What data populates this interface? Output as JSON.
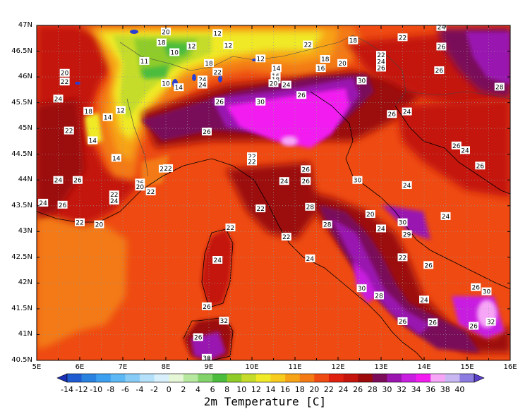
{
  "title": "2m Temperature [C]",
  "lat_labels": [
    "47N",
    "46.5N",
    "46N",
    "45.5N",
    "45N",
    "44.5N",
    "44N",
    "43.5N",
    "43N",
    "42.5N",
    "42N",
    "41.5N",
    "41N",
    "40.5N"
  ],
  "lon_labels": [
    "5E",
    "6E",
    "7E",
    "8E",
    "9E",
    "10E",
    "11E",
    "12E",
    "13E",
    "14E",
    "15E",
    "16E"
  ],
  "colorbar": {
    "labels": [
      "-14",
      "-12",
      "-10",
      "-8",
      "-6",
      "-4",
      "-2",
      "0",
      "2",
      "4",
      "6",
      "8",
      "10",
      "12",
      "14",
      "16",
      "18",
      "20",
      "22",
      "24",
      "26",
      "28",
      "30",
      "32",
      "34",
      "36",
      "38",
      "40"
    ],
    "colors": [
      "#1b2fb5",
      "#1f5ad0",
      "#2a82e0",
      "#3c9ff0",
      "#5cb8f5",
      "#86ccf7",
      "#b4e0fa",
      "#d8f0fb",
      "#e6f7d8",
      "#b6e8a0",
      "#82d46a",
      "#4cbc3c",
      "#8fcc2a",
      "#c5dc2a",
      "#f0ea28",
      "#f8cc1c",
      "#f7a318",
      "#f37a14",
      "#ee4a12",
      "#e0200e",
      "#c4140c",
      "#9c0a0c",
      "#7a0c5a",
      "#9a14b0",
      "#c81ee0",
      "#f21cf0",
      "#f7a6f7",
      "#c9b7f2",
      "#8c7be0",
      "#5a40c8"
    ]
  },
  "contour_labels": [
    {
      "t": "20",
      "lon": 8.0,
      "lat": 46.88
    },
    {
      "t": "12",
      "lon": 9.2,
      "lat": 46.85
    },
    {
      "t": "18",
      "lon": 7.9,
      "lat": 46.67
    },
    {
      "t": "10",
      "lon": 8.2,
      "lat": 46.48
    },
    {
      "t": "12",
      "lon": 8.6,
      "lat": 46.6
    },
    {
      "t": "12",
      "lon": 9.45,
      "lat": 46.62
    },
    {
      "t": "11",
      "lon": 7.5,
      "lat": 46.31
    },
    {
      "t": "20",
      "lon": 5.65,
      "lat": 46.08
    },
    {
      "t": "22",
      "lon": 5.65,
      "lat": 45.91
    },
    {
      "t": "10",
      "lon": 8.0,
      "lat": 45.88
    },
    {
      "t": "14",
      "lon": 8.3,
      "lat": 45.8
    },
    {
      "t": "18",
      "lon": 9.0,
      "lat": 46.27
    },
    {
      "t": "22",
      "lon": 9.2,
      "lat": 46.1
    },
    {
      "t": "24",
      "lon": 8.85,
      "lat": 45.95
    },
    {
      "t": "24",
      "lon": 8.85,
      "lat": 45.85
    },
    {
      "t": "12",
      "lon": 10.2,
      "lat": 46.36
    },
    {
      "t": "22",
      "lon": 11.3,
      "lat": 46.63
    },
    {
      "t": "18",
      "lon": 11.7,
      "lat": 46.35
    },
    {
      "t": "16",
      "lon": 11.6,
      "lat": 46.17
    },
    {
      "t": "20",
      "lon": 12.1,
      "lat": 46.27
    },
    {
      "t": "14",
      "lon": 10.57,
      "lat": 46.17
    },
    {
      "t": "16",
      "lon": 10.55,
      "lat": 46.02
    },
    {
      "t": "18",
      "lon": 10.55,
      "lat": 45.95
    },
    {
      "t": "20",
      "lon": 10.5,
      "lat": 45.88
    },
    {
      "t": "24",
      "lon": 10.8,
      "lat": 45.85
    },
    {
      "t": "18",
      "lon": 12.35,
      "lat": 46.71
    },
    {
      "t": "22",
      "lon": 13.0,
      "lat": 46.43
    },
    {
      "t": "22",
      "lon": 13.5,
      "lat": 46.77
    },
    {
      "t": "24",
      "lon": 14.4,
      "lat": 46.97
    },
    {
      "t": "24",
      "lon": 13.0,
      "lat": 46.3
    },
    {
      "t": "26",
      "lon": 14.4,
      "lat": 46.59
    },
    {
      "t": "26",
      "lon": 13.0,
      "lat": 46.18
    },
    {
      "t": "26",
      "lon": 14.35,
      "lat": 46.13
    },
    {
      "t": "30",
      "lon": 12.55,
      "lat": 45.93
    },
    {
      "t": "24",
      "lon": 5.5,
      "lat": 45.58
    },
    {
      "t": "18",
      "lon": 6.2,
      "lat": 45.34
    },
    {
      "t": "14",
      "lon": 6.65,
      "lat": 45.22
    },
    {
      "t": "12",
      "lon": 6.95,
      "lat": 45.36
    },
    {
      "t": "22",
      "lon": 5.75,
      "lat": 44.96
    },
    {
      "t": "14",
      "lon": 6.3,
      "lat": 44.77
    },
    {
      "t": "14",
      "lon": 6.85,
      "lat": 44.43
    },
    {
      "t": "26",
      "lon": 9.25,
      "lat": 45.52
    },
    {
      "t": "30",
      "lon": 10.2,
      "lat": 45.52
    },
    {
      "t": "26",
      "lon": 11.15,
      "lat": 45.65
    },
    {
      "t": "26",
      "lon": 13.25,
      "lat": 45.28
    },
    {
      "t": "26",
      "lon": 8.95,
      "lat": 44.94
    },
    {
      "t": "24",
      "lon": 13.6,
      "lat": 45.33
    },
    {
      "t": "28",
      "lon": 15.75,
      "lat": 45.81
    },
    {
      "t": "24",
      "lon": 7.95,
      "lat": 44.22
    },
    {
      "t": "26",
      "lon": 14.75,
      "lat": 44.67
    },
    {
      "t": "24",
      "lon": 14.95,
      "lat": 44.58
    },
    {
      "t": "26",
      "lon": 15.3,
      "lat": 44.28
    },
    {
      "t": "22",
      "lon": 10.0,
      "lat": 44.46
    },
    {
      "t": "22",
      "lon": 10.0,
      "lat": 44.36
    },
    {
      "t": "26",
      "lon": 11.25,
      "lat": 44.21
    },
    {
      "t": "22",
      "lon": 8.05,
      "lat": 44.23
    },
    {
      "t": "26",
      "lon": 7.4,
      "lat": 43.95
    },
    {
      "t": "20",
      "lon": 7.4,
      "lat": 43.87
    },
    {
      "t": "22",
      "lon": 7.65,
      "lat": 43.78
    },
    {
      "t": "24",
      "lon": 5.5,
      "lat": 44.0
    },
    {
      "t": "26",
      "lon": 5.95,
      "lat": 44.0
    },
    {
      "t": "24",
      "lon": 10.75,
      "lat": 43.98
    },
    {
      "t": "26",
      "lon": 11.25,
      "lat": 43.98
    },
    {
      "t": "30",
      "lon": 12.45,
      "lat": 44.0
    },
    {
      "t": "24",
      "lon": 13.6,
      "lat": 43.9
    },
    {
      "t": "22",
      "lon": 6.8,
      "lat": 43.72
    },
    {
      "t": "24",
      "lon": 6.8,
      "lat": 43.6
    },
    {
      "t": "24",
      "lon": 5.15,
      "lat": 43.56
    },
    {
      "t": "26",
      "lon": 5.6,
      "lat": 43.52
    },
    {
      "t": "22",
      "lon": 10.2,
      "lat": 43.45
    },
    {
      "t": "28",
      "lon": 11.35,
      "lat": 43.48
    },
    {
      "t": "20",
      "lon": 12.75,
      "lat": 43.34
    },
    {
      "t": "24",
      "lon": 14.5,
      "lat": 43.3
    },
    {
      "t": "22",
      "lon": 6.0,
      "lat": 43.18
    },
    {
      "t": "20",
      "lon": 6.45,
      "lat": 43.14
    },
    {
      "t": "22",
      "lon": 9.5,
      "lat": 43.08
    },
    {
      "t": "28",
      "lon": 11.75,
      "lat": 43.14
    },
    {
      "t": "24",
      "lon": 13.0,
      "lat": 43.06
    },
    {
      "t": "30",
      "lon": 13.5,
      "lat": 43.18
    },
    {
      "t": "29",
      "lon": 13.6,
      "lat": 42.95
    },
    {
      "t": "22",
      "lon": 10.8,
      "lat": 42.9
    },
    {
      "t": "22",
      "lon": 13.5,
      "lat": 42.5
    },
    {
      "t": "24",
      "lon": 9.2,
      "lat": 42.45
    },
    {
      "t": "24",
      "lon": 11.35,
      "lat": 42.48
    },
    {
      "t": "26",
      "lon": 14.1,
      "lat": 42.35
    },
    {
      "t": "26",
      "lon": 15.2,
      "lat": 41.92
    },
    {
      "t": "30",
      "lon": 15.45,
      "lat": 41.84
    },
    {
      "t": "30",
      "lon": 12.55,
      "lat": 41.9
    },
    {
      "t": "28",
      "lon": 12.95,
      "lat": 41.76
    },
    {
      "t": "24",
      "lon": 14.0,
      "lat": 41.68
    },
    {
      "t": "26",
      "lon": 13.5,
      "lat": 41.26
    },
    {
      "t": "26",
      "lon": 14.2,
      "lat": 41.24
    },
    {
      "t": "26",
      "lon": 15.15,
      "lat": 41.17
    },
    {
      "t": "32",
      "lon": 15.55,
      "lat": 41.25
    },
    {
      "t": "26",
      "lon": 8.95,
      "lat": 41.55
    },
    {
      "t": "32",
      "lon": 9.35,
      "lat": 41.27
    },
    {
      "t": "26",
      "lon": 8.75,
      "lat": 40.95
    },
    {
      "t": "30",
      "lon": 8.95,
      "lat": 40.55
    }
  ]
}
